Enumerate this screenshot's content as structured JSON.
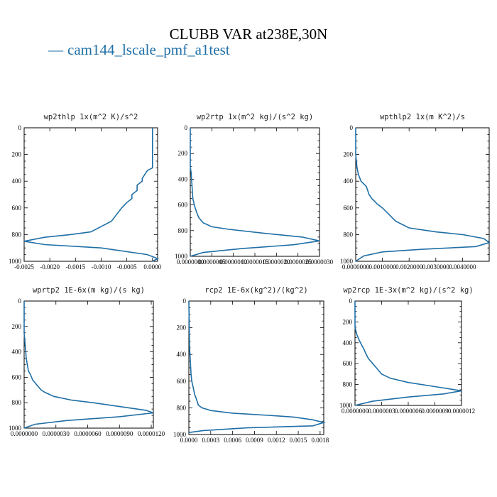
{
  "title": "CLUBB VAR at238E,30N",
  "legend": {
    "dash": "—",
    "label": "cam144_lscale_pmf_a1test",
    "color": "#1f6fa6"
  },
  "chart_data": [
    {
      "type": "line",
      "title": "wp2thlp   1x(m^2 K)/s^2",
      "xlim": [
        -0.0025,
        0.0001
      ],
      "ylim": [
        1000,
        0
      ],
      "xticks": [
        -0.0025,
        -0.002,
        -0.0015,
        -0.001,
        -0.0005,
        0
      ],
      "xtick_labels": [
        "-0.0025",
        "-0.0020",
        "-0.0015",
        "-0.0010",
        "-0.0005",
        "0.0000"
      ],
      "yticks": [
        0,
        200,
        400,
        600,
        800,
        1000
      ],
      "ytick_labels": [
        "0",
        "200",
        "400",
        "600",
        "800",
        "1000"
      ],
      "series": [
        {
          "name": "cam144_lscale_pmf_a1test",
          "x": [
            0.0,
            0.0,
            0.0,
            -0.0001,
            -0.0002,
            -0.0002,
            -0.0003,
            -0.0003,
            -0.0004,
            -0.0004,
            -0.0005,
            -0.0006,
            -0.0007,
            -0.0008,
            -0.001,
            -0.0012,
            -0.0016,
            -0.0021,
            -0.0025,
            -0.0021,
            -0.001,
            -0.0001,
            0.0001,
            0.0
          ],
          "y": [
            0,
            100,
            300,
            320,
            380,
            400,
            430,
            470,
            500,
            530,
            560,
            600,
            650,
            700,
            740,
            780,
            800,
            820,
            850,
            875,
            900,
            950,
            980,
            1000
          ]
        }
      ]
    },
    {
      "type": "line",
      "title": "wp2rtp   1x(m^2 kg)/(s^2 kg)",
      "xlim": [
        0,
        3e-06
      ],
      "ylim": [
        1000,
        0
      ],
      "xticks": [
        0,
        5e-07,
        1e-06,
        1.5e-06,
        2e-06,
        2.5e-06,
        3e-06
      ],
      "xtick_labels": [
        "0.0000000",
        "0.0000005",
        "0.0000010",
        "0.0000015",
        "0.0000020",
        "0.0000025",
        "0.0000030"
      ],
      "yticks": [
        0,
        200,
        400,
        600,
        800,
        1000
      ],
      "ytick_labels": [
        "0",
        "200",
        "400",
        "600",
        "800",
        "1000"
      ],
      "series": [
        {
          "name": "cam144_lscale_pmf_a1test",
          "x": [
            0,
            0,
            2e-08,
            4e-08,
            6e-08,
            8e-08,
            1e-07,
            1.5e-07,
            2e-07,
            3e-07,
            5e-07,
            9e-07,
            1.7e-06,
            2.6e-06,
            3e-06,
            2.4e-06,
            1.2e-06,
            3e-07,
            0
          ],
          "y": [
            0,
            300,
            350,
            450,
            550,
            580,
            610,
            660,
            700,
            740,
            770,
            790,
            820,
            850,
            880,
            910,
            940,
            970,
            1000
          ]
        }
      ]
    },
    {
      "type": "line",
      "title": "wpthlp2   1x(m K^2)/s",
      "xlim": [
        0,
        0.005
      ],
      "ylim": [
        1000,
        0
      ],
      "xticks": [
        0,
        0.001,
        0.002,
        0.003,
        0.004
      ],
      "xtick_labels": [
        "0.0000000",
        "0.0010000",
        "0.0020000",
        "0.0030000",
        "0.0040000"
      ],
      "yticks": [
        0,
        200,
        400,
        600,
        800,
        1000
      ],
      "ytick_labels": [
        "0",
        "200",
        "400",
        "600",
        "800",
        "1000"
      ],
      "series": [
        {
          "name": "cam144_lscale_pmf_a1test",
          "x": [
            0,
            0,
            5e-05,
            0.0001,
            0.0002,
            0.0004,
            0.0005,
            0.0006,
            0.0008,
            0.001,
            0.0011,
            0.0013,
            0.0015,
            0.002,
            0.003,
            0.004,
            0.0048,
            0.005,
            0.0045,
            0.0025,
            0.001,
            0.0003,
            0
          ],
          "y": [
            0,
            200,
            300,
            350,
            400,
            440,
            500,
            530,
            570,
            600,
            620,
            660,
            700,
            750,
            780,
            800,
            830,
            860,
            890,
            910,
            930,
            960,
            1000
          ]
        }
      ]
    },
    {
      "type": "line",
      "title": "wprtp2   1E-6x(m kg)/(s kg)",
      "xlim": [
        0,
        1.22e-05
      ],
      "ylim": [
        1000,
        0
      ],
      "xticks": [
        0,
        3e-06,
        6e-06,
        9e-06,
        1.2e-05
      ],
      "xtick_labels": [
        "0.0000000",
        "0.0000030",
        "0.0000060",
        "0.0000090",
        "0.0000120"
      ],
      "yticks": [
        0,
        200,
        400,
        600,
        800,
        1000
      ],
      "ytick_labels": [
        "0",
        "200",
        "400",
        "600",
        "800",
        "1000"
      ],
      "series": [
        {
          "name": "cam144_lscale_pmf_a1test",
          "x": [
            0,
            0,
            1e-07,
            2e-07,
            4e-07,
            6e-07,
            8e-07,
            1.2e-06,
            1.6e-06,
            2e-06,
            2.8e-06,
            4.5e-06,
            6.5e-06,
            9e-06,
            1.15e-05,
            1.22e-05,
            9e-06,
            4e-06,
            1e-06,
            0
          ],
          "y": [
            0,
            250,
            350,
            450,
            550,
            580,
            620,
            660,
            700,
            720,
            750,
            780,
            800,
            830,
            860,
            880,
            910,
            940,
            970,
            1000
          ]
        }
      ]
    },
    {
      "type": "line",
      "title": "rcp2   1E-6x(kg^2)/(kg^2)",
      "xlim": [
        0,
        0.00185
      ],
      "ylim": [
        1000,
        0
      ],
      "xticks": [
        0,
        0.0003,
        0.0006,
        0.0009,
        0.0012,
        0.0015,
        0.0018
      ],
      "xtick_labels": [
        "0.0000",
        "0.0003",
        "0.0006",
        "0.0009",
        "0.0012",
        "0.0015",
        "0.0018"
      ],
      "yticks": [
        0,
        200,
        400,
        600,
        800,
        1000
      ],
      "ytick_labels": [
        "0",
        "200",
        "400",
        "600",
        "800",
        "1000"
      ],
      "series": [
        {
          "name": "cam144_lscale_pmf_a1test",
          "x": [
            0,
            1e-05,
            2e-05,
            3e-05,
            4e-05,
            6e-05,
            8e-05,
            0.0001,
            0.00013,
            0.00018,
            0.0003,
            0.0006,
            0.0009,
            0.0012,
            0.00145,
            0.0017,
            0.00185,
            0.0017,
            0.0008,
            0.0002,
            0
          ],
          "y": [
            0,
            350,
            450,
            550,
            600,
            650,
            700,
            730,
            780,
            800,
            820,
            840,
            850,
            860,
            870,
            890,
            910,
            935,
            950,
            970,
            985
          ]
        }
      ]
    },
    {
      "type": "line",
      "title": "wp2rcp   1E-3x(m^2 kg)/(s^2 kg)",
      "xlim": [
        0,
        1.2e-06
      ],
      "ylim": [
        1000,
        0
      ],
      "xticks": [
        0,
        3e-07,
        6e-07,
        9e-07,
        1.2e-06
      ],
      "xtick_labels": [
        "0.0000000",
        "0.0000003",
        "0.0000006",
        "0.0000009",
        "0.0000012"
      ],
      "yticks": [
        0,
        200,
        400,
        600,
        800,
        1000
      ],
      "ytick_labels": [
        "0",
        "200",
        "400",
        "600",
        "800",
        "1000"
      ],
      "series": [
        {
          "name": "cam144_lscale_pmf_a1test",
          "x": [
            0,
            0,
            2e-08,
            5e-08,
            8e-08,
            1e-07,
            1.2e-07,
            1.5e-07,
            2e-07,
            2.5e-07,
            3e-07,
            4e-07,
            6e-07,
            9e-07,
            1.2e-06,
            1e-06,
            6e-07,
            2e-07,
            0
          ],
          "y": [
            0,
            250,
            320,
            380,
            430,
            460,
            500,
            550,
            600,
            650,
            700,
            740,
            780,
            820,
            860,
            890,
            920,
            960,
            1000
          ]
        }
      ]
    }
  ]
}
